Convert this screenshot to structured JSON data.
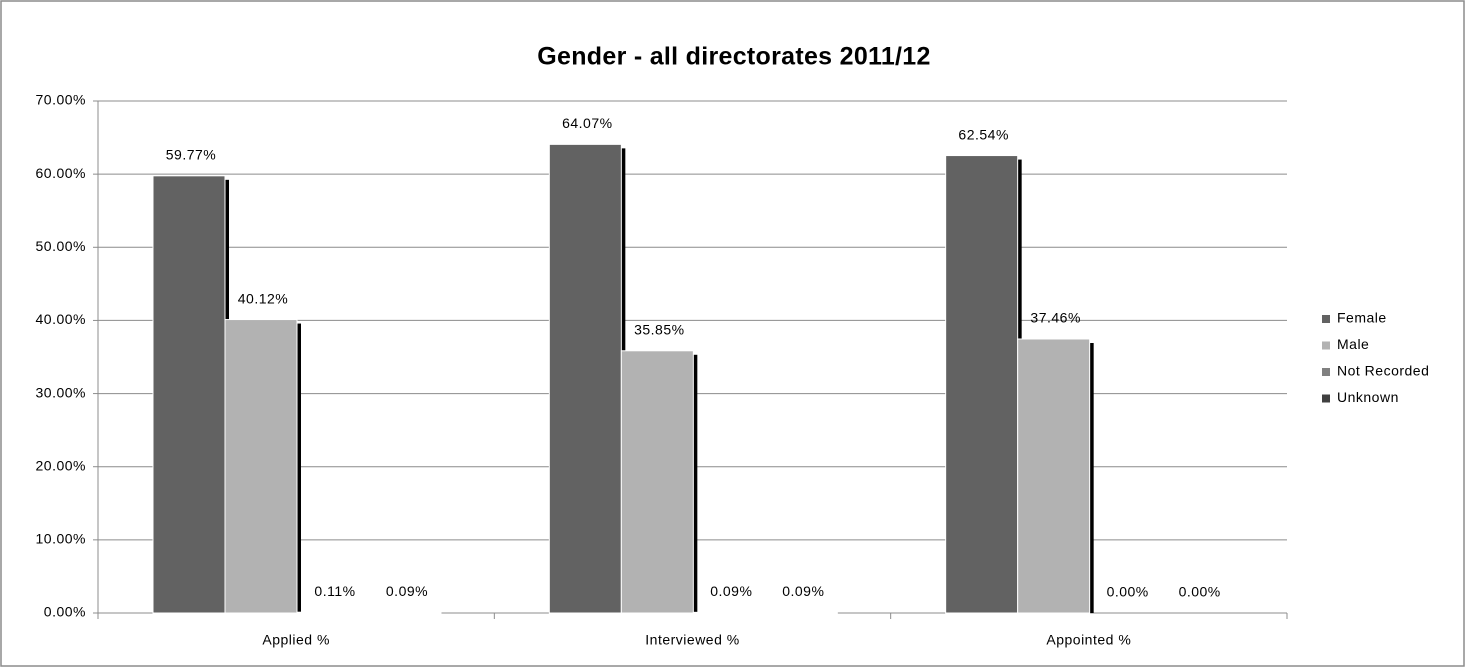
{
  "chart_data": {
    "type": "bar",
    "title": "Gender - all directorates 2011/12",
    "categories": [
      "Applied %",
      "Interviewed %",
      "Appointed %"
    ],
    "series": [
      {
        "name": "Female",
        "color": "#626262",
        "values": [
          59.77,
          64.07,
          62.54
        ],
        "value_labels": [
          "59.77%",
          "64.07%",
          "62.54%"
        ]
      },
      {
        "name": "Male",
        "color": "#b2b2b2",
        "values": [
          40.12,
          35.85,
          37.46
        ],
        "value_labels": [
          "40.12%",
          "35.85%",
          "37.46%"
        ]
      },
      {
        "name": "Not Recorded",
        "color": "#808080",
        "values": [
          0.11,
          0.09,
          0.0
        ],
        "value_labels": [
          "0.11%",
          "0.09%",
          "0.00%"
        ]
      },
      {
        "name": "Unknown",
        "color": "#404040",
        "values": [
          0.09,
          0.09,
          0.0
        ],
        "value_labels": [
          "0.09%",
          "0.09%",
          "0.00%"
        ]
      }
    ],
    "ylim": [
      0,
      70
    ],
    "yticks": [
      {
        "value": 0,
        "label": "0.00%"
      },
      {
        "value": 10,
        "label": "10.00%"
      },
      {
        "value": 20,
        "label": "20.00%"
      },
      {
        "value": 30,
        "label": "30.00%"
      },
      {
        "value": 40,
        "label": "40.00%"
      },
      {
        "value": 50,
        "label": "50.00%"
      },
      {
        "value": 60,
        "label": "60.00%"
      },
      {
        "value": 70,
        "label": "70.00%"
      }
    ],
    "grid": true,
    "legend": "right"
  }
}
